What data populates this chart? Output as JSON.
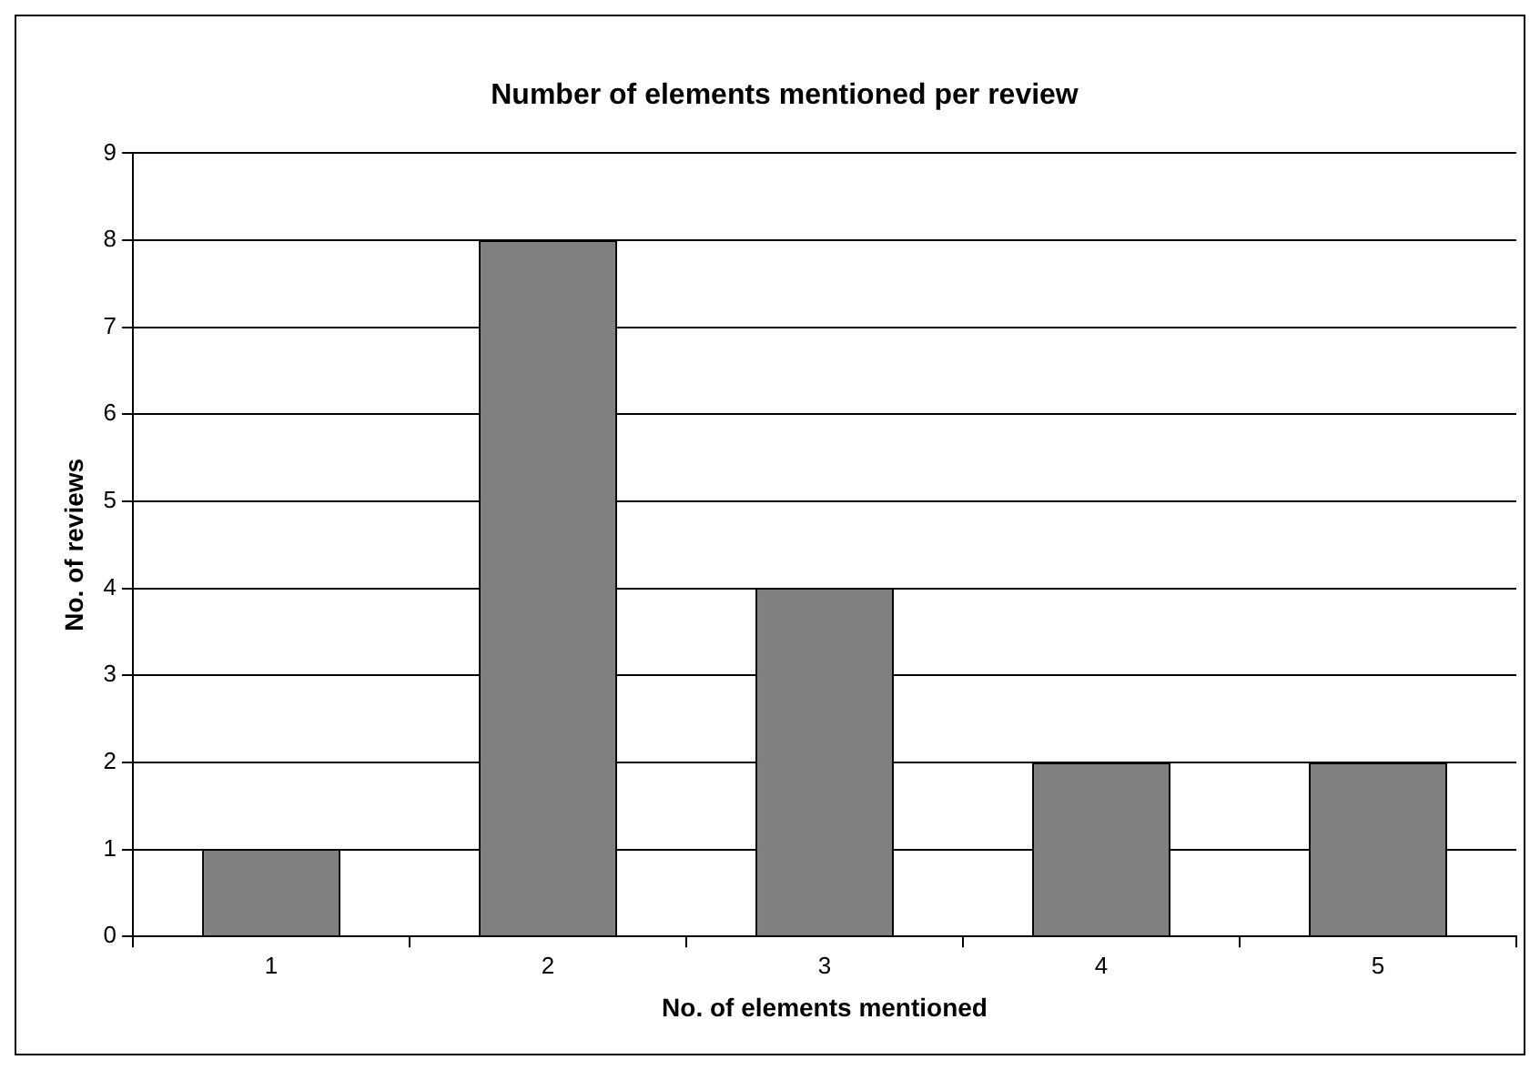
{
  "chart_data": {
    "type": "bar",
    "title": "Number of elements mentioned per review",
    "xlabel": "No. of elements mentioned",
    "ylabel": "No. of reviews",
    "categories": [
      "1",
      "2",
      "3",
      "4",
      "5"
    ],
    "values": [
      1,
      8,
      4,
      2,
      2
    ],
    "color": "#808080",
    "ylim": [
      0,
      9
    ],
    "yticks": [
      0,
      1,
      2,
      3,
      4,
      5,
      6,
      7,
      8,
      9
    ],
    "grid": "y",
    "legend": false
  }
}
